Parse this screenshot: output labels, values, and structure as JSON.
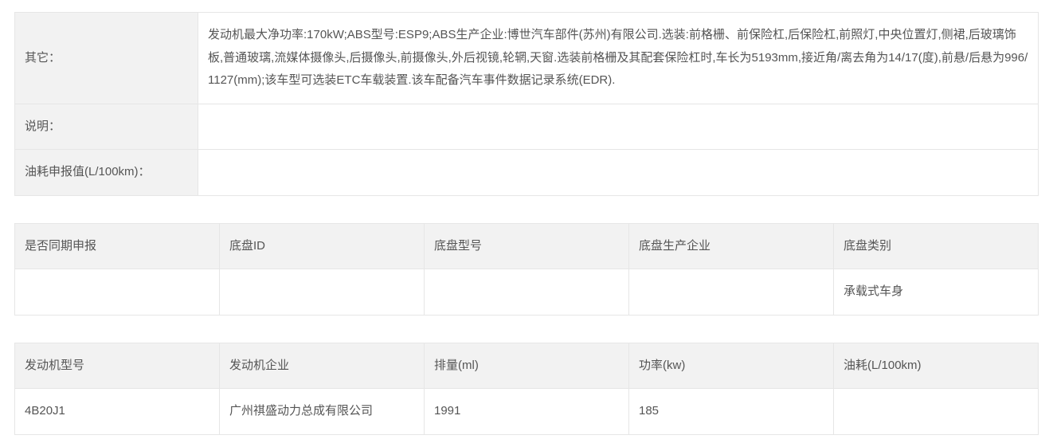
{
  "colors": {
    "header_bg": "#f2f2f2",
    "border": "#e6e6e6",
    "text": "#555555",
    "page_bg": "#ffffff"
  },
  "topRows": [
    {
      "label": "其它：",
      "value": "发动机最大净功率:170kW;ABS型号:ESP9;ABS生产企业:博世汽车部件(苏州)有限公司.选装:前格栅、前保险杠,后保险杠,前照灯,中央位置灯,侧裙,后玻璃饰板,普通玻璃,流媒体摄像头,后摄像头,前摄像头,外后视镜,轮辋,天窗.选装前格栅及其配套保险杠时,车长为5193mm,接近角/离去角为14/17(度),前悬/后悬为996/1127(mm);该车型可选装ETC车载装置.该车配备汽车事件数据记录系统(EDR)."
    },
    {
      "label": "说明：",
      "value": ""
    },
    {
      "label": "油耗申报值(L/100km)：",
      "value": ""
    }
  ],
  "chassis": {
    "headers": [
      "是否同期申报",
      "底盘ID",
      "底盘型号",
      "底盘生产企业",
      "底盘类别"
    ],
    "row": [
      "",
      "",
      "",
      "",
      "承载式车身"
    ]
  },
  "engine": {
    "headers": [
      "发动机型号",
      "发动机企业",
      "排量(ml)",
      "功率(kw)",
      "油耗(L/100km)"
    ],
    "row": [
      "4B20J1",
      "广州祺盛动力总成有限公司",
      "1991",
      "185",
      ""
    ]
  }
}
